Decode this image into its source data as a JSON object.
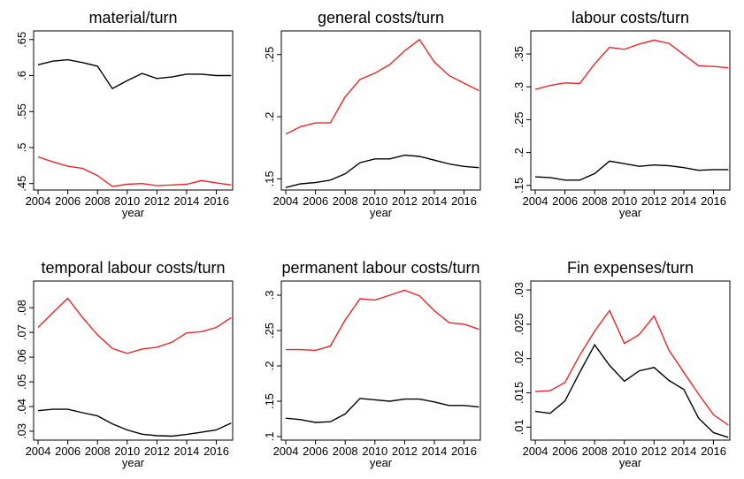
{
  "chart_data": [
    {
      "type": "line",
      "title": "material/turn",
      "xlabel": "year",
      "x": [
        2004,
        2005,
        2006,
        2007,
        2008,
        2009,
        2010,
        2011,
        2012,
        2013,
        2014,
        2015,
        2016,
        2017
      ],
      "xlim": [
        2003.7,
        2017.1
      ],
      "xticks": [
        2004,
        2006,
        2008,
        2010,
        2012,
        2014,
        2016
      ],
      "ylim": [
        0.441,
        0.662
      ],
      "yticks": [
        {
          "value": 0.45,
          "label": ".45"
        },
        {
          "value": 0.5,
          "label": ".5"
        },
        {
          "value": 0.55,
          "label": ".55"
        },
        {
          "value": 0.6,
          "label": ".6"
        },
        {
          "value": 0.65,
          "label": ".65"
        }
      ],
      "series": [
        {
          "color": "#000000",
          "values": [
            0.615,
            0.62,
            0.622,
            0.618,
            0.613,
            0.582,
            0.593,
            0.603,
            0.596,
            0.598,
            0.602,
            0.602,
            0.6,
            0.6
          ]
        },
        {
          "color": "#e8262b",
          "values": [
            0.487,
            0.48,
            0.474,
            0.471,
            0.461,
            0.446,
            0.449,
            0.45,
            0.447,
            0.448,
            0.449,
            0.454,
            0.451,
            0.448
          ]
        }
      ]
    },
    {
      "type": "line",
      "title": "general costs/turn",
      "xlabel": "year",
      "x": [
        2004,
        2005,
        2006,
        2007,
        2008,
        2009,
        2010,
        2011,
        2012,
        2013,
        2014,
        2015,
        2016,
        2017
      ],
      "xlim": [
        2003.7,
        2017.1
      ],
      "xticks": [
        2004,
        2006,
        2008,
        2010,
        2012,
        2014,
        2016
      ],
      "ylim": [
        0.141,
        0.269
      ],
      "yticks": [
        {
          "value": 0.15,
          "label": ".15"
        },
        {
          "value": 0.2,
          "label": ".2"
        },
        {
          "value": 0.25,
          "label": ".25"
        }
      ],
      "series": [
        {
          "color": "#000000",
          "values": [
            0.143,
            0.146,
            0.147,
            0.149,
            0.154,
            0.163,
            0.166,
            0.166,
            0.169,
            0.168,
            0.165,
            0.162,
            0.16,
            0.159
          ]
        },
        {
          "color": "#e8262b",
          "values": [
            0.186,
            0.192,
            0.195,
            0.195,
            0.216,
            0.23,
            0.235,
            0.242,
            0.253,
            0.262,
            0.244,
            0.233,
            0.227,
            0.221
          ]
        }
      ]
    },
    {
      "type": "line",
      "title": "labour costs/turn",
      "xlabel": "year",
      "x": [
        2004,
        2005,
        2006,
        2007,
        2008,
        2009,
        2010,
        2011,
        2012,
        2013,
        2014,
        2015,
        2016,
        2017
      ],
      "xlim": [
        2003.7,
        2017.1
      ],
      "xticks": [
        2004,
        2006,
        2008,
        2010,
        2012,
        2014,
        2016
      ],
      "ylim": [
        0.143,
        0.385
      ],
      "yticks": [
        {
          "value": 0.15,
          "label": ".15"
        },
        {
          "value": 0.2,
          "label": ".2"
        },
        {
          "value": 0.25,
          "label": ".25"
        },
        {
          "value": 0.3,
          "label": ".3"
        },
        {
          "value": 0.35,
          "label": ".35"
        }
      ],
      "series": [
        {
          "color": "#000000",
          "values": [
            0.163,
            0.162,
            0.158,
            0.158,
            0.168,
            0.187,
            0.183,
            0.179,
            0.181,
            0.18,
            0.177,
            0.173,
            0.174,
            0.174
          ]
        },
        {
          "color": "#e8262b",
          "values": [
            0.296,
            0.302,
            0.306,
            0.305,
            0.335,
            0.36,
            0.357,
            0.365,
            0.371,
            0.366,
            0.349,
            0.332,
            0.331,
            0.329
          ]
        }
      ]
    },
    {
      "type": "line",
      "title": "temporal labour costs/turn",
      "xlabel": "year",
      "x": [
        2004,
        2005,
        2006,
        2007,
        2008,
        2009,
        2010,
        2011,
        2012,
        2013,
        2014,
        2015,
        2016,
        2017
      ],
      "xlim": [
        2003.7,
        2017.1
      ],
      "xticks": [
        2004,
        2006,
        2008,
        2010,
        2012,
        2014,
        2016
      ],
      "ylim": [
        0.0264,
        0.0908
      ],
      "yticks": [
        {
          "value": 0.03,
          "label": ".03"
        },
        {
          "value": 0.04,
          "label": ".04"
        },
        {
          "value": 0.05,
          "label": ".05"
        },
        {
          "value": 0.06,
          "label": ".06"
        },
        {
          "value": 0.07,
          "label": ".07"
        },
        {
          "value": 0.08,
          "label": ".08"
        }
      ],
      "series": [
        {
          "color": "#000000",
          "values": [
            0.0383,
            0.0389,
            0.0389,
            0.0375,
            0.0362,
            0.033,
            0.0305,
            0.0288,
            0.0282,
            0.028,
            0.0287,
            0.0296,
            0.0305,
            0.0333
          ]
        },
        {
          "color": "#e8262b",
          "values": [
            0.072,
            0.078,
            0.0838,
            0.076,
            0.069,
            0.0635,
            0.0615,
            0.0633,
            0.064,
            0.066,
            0.0698,
            0.0703,
            0.072,
            0.076
          ]
        }
      ]
    },
    {
      "type": "line",
      "title": "permanent labour costs/turn",
      "xlabel": "year",
      "x": [
        2004,
        2005,
        2006,
        2007,
        2008,
        2009,
        2010,
        2011,
        2012,
        2013,
        2014,
        2015,
        2016,
        2017
      ],
      "xlim": [
        2003.7,
        2017.1
      ],
      "xticks": [
        2004,
        2006,
        2008,
        2010,
        2012,
        2014,
        2016
      ],
      "ylim": [
        0.095,
        0.32
      ],
      "yticks": [
        {
          "value": 0.1,
          "label": ".1"
        },
        {
          "value": 0.15,
          "label": ".15"
        },
        {
          "value": 0.2,
          "label": ".2"
        },
        {
          "value": 0.25,
          "label": ".25"
        },
        {
          "value": 0.3,
          "label": ".3"
        }
      ],
      "series": [
        {
          "color": "#000000",
          "values": [
            0.126,
            0.124,
            0.12,
            0.121,
            0.132,
            0.154,
            0.152,
            0.15,
            0.153,
            0.153,
            0.149,
            0.144,
            0.144,
            0.142
          ]
        },
        {
          "color": "#e8262b",
          "values": [
            0.223,
            0.223,
            0.222,
            0.228,
            0.265,
            0.295,
            0.293,
            0.3,
            0.307,
            0.299,
            0.278,
            0.261,
            0.259,
            0.252
          ]
        }
      ]
    },
    {
      "type": "line",
      "title": "Fin expenses/turn",
      "xlabel": "year",
      "x": [
        2004,
        2005,
        2006,
        2007,
        2008,
        2009,
        2010,
        2011,
        2012,
        2013,
        2014,
        2015,
        2016,
        2017
      ],
      "xlim": [
        2003.7,
        2017.1
      ],
      "xticks": [
        2004,
        2006,
        2008,
        2010,
        2012,
        2014,
        2016
      ],
      "ylim": [
        0.0081,
        0.0313
      ],
      "yticks": [
        {
          "value": 0.01,
          "label": ".01"
        },
        {
          "value": 0.015,
          "label": ".015"
        },
        {
          "value": 0.02,
          "label": ".02"
        },
        {
          "value": 0.025,
          "label": ".025"
        },
        {
          "value": 0.03,
          "label": ".03"
        }
      ],
      "series": [
        {
          "color": "#000000",
          "values": [
            0.0123,
            0.012,
            0.0138,
            0.018,
            0.022,
            0.019,
            0.0167,
            0.0182,
            0.0187,
            0.0168,
            0.0155,
            0.0113,
            0.0092,
            0.0085
          ]
        },
        {
          "color": "#e8262b",
          "values": [
            0.0152,
            0.0153,
            0.0165,
            0.0205,
            0.024,
            0.027,
            0.0222,
            0.0235,
            0.0262,
            0.0212,
            0.018,
            0.0148,
            0.0118,
            0.0103
          ]
        }
      ]
    }
  ]
}
